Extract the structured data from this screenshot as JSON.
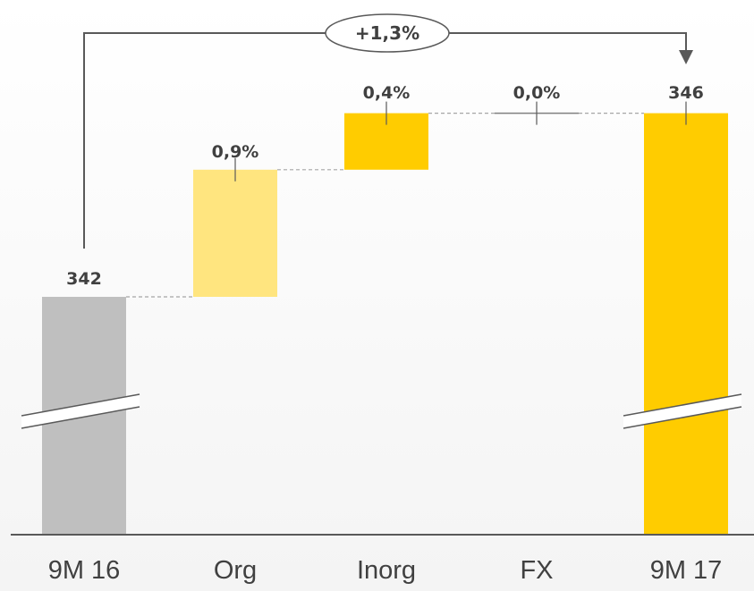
{
  "chart_data": {
    "type": "waterfall",
    "categories": [
      "9M 16",
      "Org",
      "Inorg",
      "FX",
      "9M 17"
    ],
    "start": {
      "category": "9M 16",
      "value": 342,
      "label": "342"
    },
    "end": {
      "category": "9M 17",
      "value": 346,
      "label": "346"
    },
    "changes": [
      {
        "category": "Org",
        "value_pct": 0.9,
        "label": "0,9%"
      },
      {
        "category": "Inorg",
        "value_pct": 0.4,
        "label": "0,4%"
      },
      {
        "category": "FX",
        "value_pct": 0.0,
        "label": "0,0%"
      }
    ],
    "total_change_label": "+1,3%",
    "axis_break": true,
    "colors": {
      "start": "#bfbfbf",
      "org": "#ffe57f",
      "inorg": "#ffcc00",
      "fx": "#808080",
      "end": "#ffcc00",
      "text": "#404040",
      "connector": "#a6a6a6",
      "axis": "#595959"
    }
  }
}
